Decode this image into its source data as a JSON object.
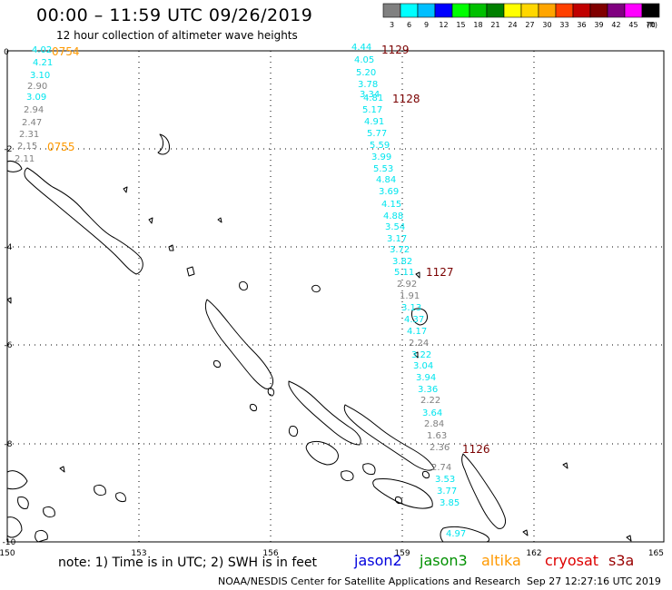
{
  "header": {
    "title": "00:00 – 11:59 UTC 09/26/2019",
    "subtitle": "12 hour collection of altimeter wave heights"
  },
  "legend": {
    "unit": "(ft)",
    "bins": [
      {
        "label": "3",
        "color": "#808080"
      },
      {
        "label": "6",
        "color": "#00ffff"
      },
      {
        "label": "9",
        "color": "#00bfff"
      },
      {
        "label": "12",
        "color": "#0000ff"
      },
      {
        "label": "15",
        "color": "#00ff00"
      },
      {
        "label": "18",
        "color": "#00c000"
      },
      {
        "label": "21",
        "color": "#008000"
      },
      {
        "label": "24",
        "color": "#ffff00"
      },
      {
        "label": "27",
        "color": "#ffd700"
      },
      {
        "label": "30",
        "color": "#ffa500"
      },
      {
        "label": "33",
        "color": "#ff4000"
      },
      {
        "label": "36",
        "color": "#c00000"
      },
      {
        "label": "39",
        "color": "#800000"
      },
      {
        "label": "42",
        "color": "#800080"
      },
      {
        "label": "45",
        "color": "#ff00ff"
      },
      {
        "label": "70",
        "color": "#000000"
      }
    ]
  },
  "axes": {
    "x_ticks": [
      "150",
      "153",
      "156",
      "159",
      "162",
      "165"
    ],
    "y_ticks": [
      "0",
      "-2",
      "-4",
      "-6",
      "-8",
      "-10"
    ]
  },
  "tracks": [
    {
      "satellite": "altika",
      "times": [
        {
          "label": "0754",
          "color": "#ff9900"
        },
        {
          "label": "0755",
          "color": "#ff9900"
        }
      ],
      "points": [
        {
          "v": "4.02",
          "c": "#00e5ee"
        },
        {
          "v": "4.21",
          "c": "#00e5ee"
        },
        {
          "v": "3.10",
          "c": "#00e5ee"
        },
        {
          "v": "2.90",
          "c": "#808080"
        },
        {
          "v": "3.09",
          "c": "#00e5ee"
        },
        {
          "v": "2.94",
          "c": "#808080"
        },
        {
          "v": "2.47",
          "c": "#808080"
        },
        {
          "v": "2.31",
          "c": "#808080"
        },
        {
          "v": "2.15",
          "c": "#808080"
        },
        {
          "v": "2.11",
          "c": "#808080"
        }
      ]
    },
    {
      "satellite": "cryosat",
      "times": [
        {
          "label": "1129",
          "color": "#7a0000"
        },
        {
          "label": "1128",
          "color": "#7a0000"
        },
        {
          "label": "1127",
          "color": "#7a0000"
        },
        {
          "label": "1126",
          "color": "#7a0000"
        }
      ],
      "points": [
        {
          "v": "4.44",
          "c": "#00e5ee"
        },
        {
          "v": "4.05",
          "c": "#00e5ee"
        },
        {
          "v": "5.20",
          "c": "#00e5ee"
        },
        {
          "v": "3.78",
          "c": "#00e5ee"
        },
        {
          "v": "3.34",
          "c": "#00e5ee"
        },
        {
          "v": "4.81",
          "c": "#00e5ee"
        },
        {
          "v": "5.17",
          "c": "#00e5ee"
        },
        {
          "v": "4.91",
          "c": "#00e5ee"
        },
        {
          "v": "5.77",
          "c": "#00e5ee"
        },
        {
          "v": "5.59",
          "c": "#00e5ee"
        },
        {
          "v": "3.99",
          "c": "#00e5ee"
        },
        {
          "v": "5.53",
          "c": "#00e5ee"
        },
        {
          "v": "4.84",
          "c": "#00e5ee"
        },
        {
          "v": "3.69",
          "c": "#00e5ee"
        },
        {
          "v": "4.15",
          "c": "#00e5ee"
        },
        {
          "v": "4.88",
          "c": "#00e5ee"
        },
        {
          "v": "3.54",
          "c": "#00e5ee"
        },
        {
          "v": "3.17",
          "c": "#00e5ee"
        },
        {
          "v": "3.72",
          "c": "#00e5ee"
        },
        {
          "v": "3.82",
          "c": "#00e5ee"
        },
        {
          "v": "5.11",
          "c": "#00e5ee"
        },
        {
          "v": "2.92",
          "c": "#808080"
        },
        {
          "v": "1.91",
          "c": "#808080"
        },
        {
          "v": "3.13",
          "c": "#00e5ee"
        },
        {
          "v": "4.37",
          "c": "#00e5ee"
        },
        {
          "v": "4.17",
          "c": "#00e5ee"
        },
        {
          "v": "2.24",
          "c": "#808080"
        },
        {
          "v": "3.22",
          "c": "#00e5ee"
        },
        {
          "v": "3.04",
          "c": "#00e5ee"
        },
        {
          "v": "3.94",
          "c": "#00e5ee"
        },
        {
          "v": "3.36",
          "c": "#00e5ee"
        },
        {
          "v": "2.22",
          "c": "#808080"
        },
        {
          "v": "3.64",
          "c": "#00e5ee"
        },
        {
          "v": "2.84",
          "c": "#808080"
        },
        {
          "v": "1.63",
          "c": "#808080"
        },
        {
          "v": "2.36",
          "c": "#808080"
        },
        {
          "v": "2.74",
          "c": "#808080"
        },
        {
          "v": "3.53",
          "c": "#00e5ee"
        },
        {
          "v": "3.77",
          "c": "#00e5ee"
        },
        {
          "v": "3.85",
          "c": "#00e5ee"
        },
        {
          "v": "4.97",
          "c": "#00e5ee"
        }
      ]
    }
  ],
  "footer": {
    "note": "note:  1) Time is in UTC;  2) SWH is in feet",
    "satellites": [
      {
        "name": "jason2",
        "color": "#0000dd"
      },
      {
        "name": "jason3",
        "color": "#009000"
      },
      {
        "name": "altika",
        "color": "#ff9900"
      },
      {
        "name": "cryosat",
        "color": "#dd0000"
      },
      {
        "name": "s3a",
        "color": "#990000"
      }
    ],
    "credit": "NOAA/NESDIS Center for Satellite Applications and Research",
    "timestamp": "Sep 27 12:27:16 UTC 2019"
  }
}
